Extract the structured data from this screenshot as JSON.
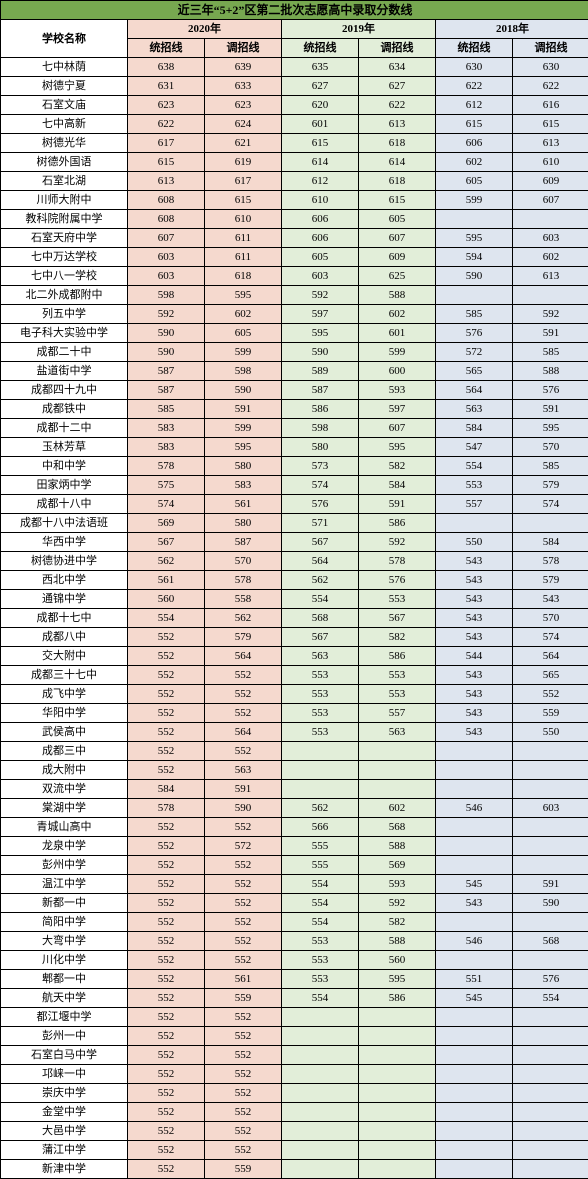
{
  "title": "近三年“5+2”区第二批次志愿高中录取分数线",
  "headers": {
    "school": "学校名称",
    "years": [
      "2020年",
      "2019年",
      "2018年"
    ],
    "sub": [
      "统招线",
      "调招线"
    ]
  },
  "colors": {
    "title_bg": "#77a850",
    "y2020_bg": "#f5d9ce",
    "y2019_bg": "#e2eed9",
    "y2018_bg": "#dee5ef"
  },
  "rows": [
    {
      "name": "七中林荫",
      "y2020": [
        638,
        639
      ],
      "y2019": [
        635,
        634
      ],
      "y2018": [
        630,
        630
      ]
    },
    {
      "name": "树德宁夏",
      "y2020": [
        631,
        633
      ],
      "y2019": [
        627,
        627
      ],
      "y2018": [
        622,
        622
      ]
    },
    {
      "name": "石室文庙",
      "y2020": [
        623,
        623
      ],
      "y2019": [
        620,
        622
      ],
      "y2018": [
        612,
        616
      ]
    },
    {
      "name": "七中高新",
      "y2020": [
        622,
        624
      ],
      "y2019": [
        601,
        613
      ],
      "y2018": [
        615,
        615
      ]
    },
    {
      "name": "树德光华",
      "y2020": [
        617,
        621
      ],
      "y2019": [
        615,
        618
      ],
      "y2018": [
        606,
        613
      ]
    },
    {
      "name": "树德外国语",
      "y2020": [
        615,
        619
      ],
      "y2019": [
        614,
        614
      ],
      "y2018": [
        602,
        610
      ]
    },
    {
      "name": "石室北湖",
      "y2020": [
        613,
        617
      ],
      "y2019": [
        612,
        618
      ],
      "y2018": [
        605,
        609
      ]
    },
    {
      "name": "川师大附中",
      "y2020": [
        608,
        615
      ],
      "y2019": [
        610,
        615
      ],
      "y2018": [
        599,
        607
      ]
    },
    {
      "name": "教科院附属中学",
      "y2020": [
        608,
        610
      ],
      "y2019": [
        606,
        605
      ],
      "y2018": [
        "",
        ""
      ]
    },
    {
      "name": "石室天府中学",
      "y2020": [
        607,
        611
      ],
      "y2019": [
        606,
        607
      ],
      "y2018": [
        595,
        603
      ]
    },
    {
      "name": "七中万达学校",
      "y2020": [
        603,
        611
      ],
      "y2019": [
        605,
        609
      ],
      "y2018": [
        594,
        602
      ]
    },
    {
      "name": "七中八一学校",
      "y2020": [
        603,
        618
      ],
      "y2019": [
        603,
        625
      ],
      "y2018": [
        590,
        613
      ]
    },
    {
      "name": "北二外成都附中",
      "y2020": [
        598,
        595
      ],
      "y2019": [
        592,
        588
      ],
      "y2018": [
        "",
        ""
      ]
    },
    {
      "name": "列五中学",
      "y2020": [
        592,
        602
      ],
      "y2019": [
        597,
        602
      ],
      "y2018": [
        585,
        592
      ]
    },
    {
      "name": "电子科大实验中学",
      "y2020": [
        590,
        605
      ],
      "y2019": [
        595,
        601
      ],
      "y2018": [
        576,
        591
      ]
    },
    {
      "name": "成都二十中",
      "y2020": [
        590,
        599
      ],
      "y2019": [
        590,
        599
      ],
      "y2018": [
        572,
        585
      ]
    },
    {
      "name": "盐道街中学",
      "y2020": [
        587,
        598
      ],
      "y2019": [
        589,
        600
      ],
      "y2018": [
        565,
        588
      ]
    },
    {
      "name": "成都四十九中",
      "y2020": [
        587,
        590
      ],
      "y2019": [
        587,
        593
      ],
      "y2018": [
        564,
        576
      ]
    },
    {
      "name": "成都铁中",
      "y2020": [
        585,
        591
      ],
      "y2019": [
        586,
        597
      ],
      "y2018": [
        563,
        591
      ]
    },
    {
      "name": "成都十二中",
      "y2020": [
        583,
        599
      ],
      "y2019": [
        598,
        607
      ],
      "y2018": [
        584,
        595
      ]
    },
    {
      "name": "玉林芳草",
      "y2020": [
        583,
        595
      ],
      "y2019": [
        580,
        595
      ],
      "y2018": [
        547,
        570
      ]
    },
    {
      "name": "中和中学",
      "y2020": [
        578,
        580
      ],
      "y2019": [
        573,
        582
      ],
      "y2018": [
        554,
        585
      ]
    },
    {
      "name": "田家炳中学",
      "y2020": [
        575,
        583
      ],
      "y2019": [
        574,
        584
      ],
      "y2018": [
        553,
        579
      ]
    },
    {
      "name": "成都十八中",
      "y2020": [
        574,
        561
      ],
      "y2019": [
        576,
        591
      ],
      "y2018": [
        557,
        574
      ]
    },
    {
      "name": "成都十八中法语班",
      "y2020": [
        569,
        580
      ],
      "y2019": [
        571,
        586
      ],
      "y2018": [
        "",
        ""
      ]
    },
    {
      "name": "华西中学",
      "y2020": [
        567,
        587
      ],
      "y2019": [
        567,
        592
      ],
      "y2018": [
        550,
        584
      ]
    },
    {
      "name": "树德协进中学",
      "y2020": [
        562,
        570
      ],
      "y2019": [
        564,
        578
      ],
      "y2018": [
        543,
        578
      ]
    },
    {
      "name": "西北中学",
      "y2020": [
        561,
        578
      ],
      "y2019": [
        562,
        576
      ],
      "y2018": [
        543,
        579
      ]
    },
    {
      "name": "通锦中学",
      "y2020": [
        560,
        558
      ],
      "y2019": [
        554,
        553
      ],
      "y2018": [
        543,
        543
      ]
    },
    {
      "name": "成都十七中",
      "y2020": [
        554,
        562
      ],
      "y2019": [
        568,
        567
      ],
      "y2018": [
        543,
        570
      ]
    },
    {
      "name": "成都八中",
      "y2020": [
        552,
        579
      ],
      "y2019": [
        567,
        582
      ],
      "y2018": [
        543,
        574
      ]
    },
    {
      "name": "交大附中",
      "y2020": [
        552,
        564
      ],
      "y2019": [
        563,
        586
      ],
      "y2018": [
        544,
        564
      ]
    },
    {
      "name": "成都三十七中",
      "y2020": [
        552,
        552
      ],
      "y2019": [
        553,
        553
      ],
      "y2018": [
        543,
        565
      ]
    },
    {
      "name": "成飞中学",
      "y2020": [
        552,
        552
      ],
      "y2019": [
        553,
        553
      ],
      "y2018": [
        543,
        552
      ]
    },
    {
      "name": "华阳中学",
      "y2020": [
        552,
        552
      ],
      "y2019": [
        553,
        557
      ],
      "y2018": [
        543,
        559
      ]
    },
    {
      "name": "武侯高中",
      "y2020": [
        552,
        564
      ],
      "y2019": [
        553,
        563
      ],
      "y2018": [
        543,
        550
      ]
    },
    {
      "name": "成都三中",
      "y2020": [
        552,
        552
      ],
      "y2019": [
        "",
        ""
      ],
      "y2018": [
        "",
        ""
      ]
    },
    {
      "name": "成大附中",
      "y2020": [
        552,
        563
      ],
      "y2019": [
        "",
        ""
      ],
      "y2018": [
        "",
        ""
      ]
    },
    {
      "name": "双流中学",
      "y2020": [
        584,
        591
      ],
      "y2019": [
        "",
        ""
      ],
      "y2018": [
        "",
        ""
      ]
    },
    {
      "name": "棠湖中学",
      "y2020": [
        578,
        590
      ],
      "y2019": [
        562,
        602
      ],
      "y2018": [
        546,
        603
      ]
    },
    {
      "name": "青城山高中",
      "y2020": [
        552,
        552
      ],
      "y2019": [
        566,
        568
      ],
      "y2018": [
        "",
        ""
      ]
    },
    {
      "name": "龙泉中学",
      "y2020": [
        552,
        572
      ],
      "y2019": [
        555,
        588
      ],
      "y2018": [
        "",
        ""
      ]
    },
    {
      "name": "彭州中学",
      "y2020": [
        552,
        552
      ],
      "y2019": [
        555,
        569
      ],
      "y2018": [
        "",
        ""
      ]
    },
    {
      "name": "温江中学",
      "y2020": [
        552,
        552
      ],
      "y2019": [
        554,
        593
      ],
      "y2018": [
        545,
        591
      ]
    },
    {
      "name": "新都一中",
      "y2020": [
        552,
        552
      ],
      "y2019": [
        554,
        592
      ],
      "y2018": [
        543,
        590
      ]
    },
    {
      "name": "简阳中学",
      "y2020": [
        552,
        552
      ],
      "y2019": [
        554,
        582
      ],
      "y2018": [
        "",
        ""
      ]
    },
    {
      "name": "大弯中学",
      "y2020": [
        552,
        552
      ],
      "y2019": [
        553,
        588
      ],
      "y2018": [
        546,
        568
      ]
    },
    {
      "name": "川化中学",
      "y2020": [
        552,
        552
      ],
      "y2019": [
        553,
        560
      ],
      "y2018": [
        "",
        ""
      ]
    },
    {
      "name": "郫都一中",
      "y2020": [
        552,
        561
      ],
      "y2019": [
        553,
        595
      ],
      "y2018": [
        551,
        576
      ]
    },
    {
      "name": "航天中学",
      "y2020": [
        552,
        559
      ],
      "y2019": [
        554,
        586
      ],
      "y2018": [
        545,
        554
      ]
    },
    {
      "name": "都江堰中学",
      "y2020": [
        552,
        552
      ],
      "y2019": [
        "",
        ""
      ],
      "y2018": [
        "",
        ""
      ]
    },
    {
      "name": "彭州一中",
      "y2020": [
        552,
        552
      ],
      "y2019": [
        "",
        ""
      ],
      "y2018": [
        "",
        ""
      ]
    },
    {
      "name": "石室白马中学",
      "y2020": [
        552,
        552
      ],
      "y2019": [
        "",
        ""
      ],
      "y2018": [
        "",
        ""
      ]
    },
    {
      "name": "邛崃一中",
      "y2020": [
        552,
        552
      ],
      "y2019": [
        "",
        ""
      ],
      "y2018": [
        "",
        ""
      ]
    },
    {
      "name": "崇庆中学",
      "y2020": [
        552,
        552
      ],
      "y2019": [
        "",
        ""
      ],
      "y2018": [
        "",
        ""
      ]
    },
    {
      "name": "金堂中学",
      "y2020": [
        552,
        552
      ],
      "y2019": [
        "",
        ""
      ],
      "y2018": [
        "",
        ""
      ]
    },
    {
      "name": "大邑中学",
      "y2020": [
        552,
        552
      ],
      "y2019": [
        "",
        ""
      ],
      "y2018": [
        "",
        ""
      ]
    },
    {
      "name": "蒲江中学",
      "y2020": [
        552,
        552
      ],
      "y2019": [
        "",
        ""
      ],
      "y2018": [
        "",
        ""
      ]
    },
    {
      "name": "新津中学",
      "y2020": [
        552,
        559
      ],
      "y2019": [
        "",
        ""
      ],
      "y2018": [
        "",
        ""
      ]
    }
  ]
}
